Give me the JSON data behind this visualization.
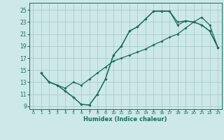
{
  "xlabel": "Humidex (Indice chaleur)",
  "bg_color": "#cce8e8",
  "grid_color": "#aacccc",
  "line_color": "#1a6b5a",
  "xlim": [
    -0.5,
    23.5
  ],
  "ylim": [
    8.5,
    26.2
  ],
  "xticks": [
    0,
    1,
    2,
    3,
    4,
    5,
    6,
    7,
    8,
    9,
    10,
    11,
    12,
    13,
    14,
    15,
    16,
    17,
    18,
    19,
    20,
    21,
    22,
    23
  ],
  "yticks": [
    9,
    11,
    13,
    15,
    17,
    19,
    21,
    23,
    25
  ],
  "line1_x": [
    1,
    2,
    3,
    4,
    5,
    6,
    7,
    8,
    9,
    10,
    11,
    12,
    13,
    14,
    15,
    16,
    17,
    18,
    19,
    20,
    21,
    22,
    23
  ],
  "line1_y": [
    14.5,
    13,
    12.5,
    11.5,
    10.5,
    9.3,
    9.2,
    11.0,
    13.5,
    17.5,
    19.0,
    21.5,
    22.2,
    23.5,
    24.8,
    24.8,
    24.8,
    23.0,
    23.2,
    23.0,
    22.5,
    21.5,
    18.8
  ],
  "line2_x": [
    1,
    2,
    3,
    4,
    5,
    6,
    7,
    8,
    9,
    10,
    11,
    12,
    13,
    14,
    15,
    16,
    17,
    18,
    19,
    20,
    21,
    22,
    23
  ],
  "line2_y": [
    14.5,
    13,
    12.5,
    12.0,
    13.0,
    12.5,
    13.5,
    14.5,
    15.5,
    16.5,
    17.0,
    17.5,
    18.0,
    18.5,
    19.2,
    19.8,
    20.5,
    21.0,
    22.0,
    23.0,
    23.8,
    22.5,
    18.8
  ],
  "line3_x": [
    1,
    2,
    3,
    4,
    5,
    6,
    7,
    8,
    9,
    10,
    11,
    12,
    13,
    14,
    15,
    16,
    17,
    18,
    19,
    20,
    21,
    22,
    23
  ],
  "line3_y": [
    14.5,
    13,
    12.5,
    11.5,
    10.5,
    9.3,
    9.2,
    11.0,
    13.5,
    17.5,
    19.0,
    21.5,
    22.2,
    23.5,
    24.8,
    24.8,
    24.8,
    22.5,
    23.2,
    23.0,
    22.5,
    21.5,
    18.8
  ]
}
